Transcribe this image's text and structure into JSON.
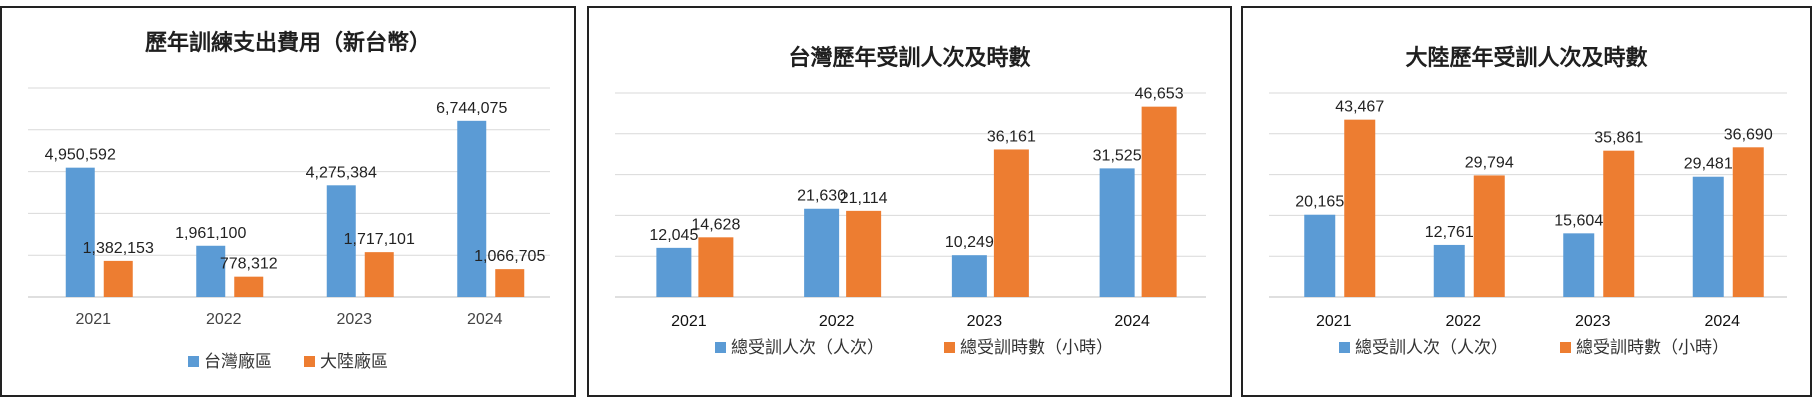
{
  "colors": {
    "series_blue": "#5b9bd5",
    "series_orange": "#ed7d31"
  },
  "chart_data": [
    {
      "type": "bar",
      "title": "歷年訓練支出費用（新台幣）",
      "categories": [
        "2021",
        "2022",
        "2023",
        "2024"
      ],
      "series": [
        {
          "name": "台灣廠區",
          "values": [
            4950592,
            1961100,
            4275384,
            6744075
          ],
          "labels": [
            "4,950,592",
            "1,961,100",
            "4,275,384",
            "6,744,075"
          ]
        },
        {
          "name": "大陸廠區",
          "values": [
            1382153,
            778312,
            1717101,
            1066705
          ],
          "labels": [
            "1,382,153",
            "778,312",
            "1,717,101",
            "1,066,705"
          ]
        }
      ],
      "ylim": [
        0,
        8000000
      ],
      "grid": true,
      "legend": "bottom"
    },
    {
      "type": "bar",
      "title": "台灣歷年受訓人次及時數",
      "categories": [
        "2021",
        "2022",
        "2023",
        "2024"
      ],
      "series": [
        {
          "name": "總受訓人次（人次）",
          "values": [
            12045,
            21630,
            10249,
            31525
          ],
          "labels": [
            "12,045",
            "21,630",
            "10,249",
            "31,525"
          ]
        },
        {
          "name": "總受訓時數（小時）",
          "values": [
            14628,
            21114,
            36161,
            46653
          ],
          "labels": [
            "14,628",
            "21,114",
            "36,161",
            "46,653"
          ]
        }
      ],
      "ylim": [
        0,
        50000
      ],
      "grid": true,
      "legend": "bottom"
    },
    {
      "type": "bar",
      "title": "大陸歷年受訓人次及時數",
      "categories": [
        "2021",
        "2022",
        "2023",
        "2024"
      ],
      "series": [
        {
          "name": "總受訓人次（人次）",
          "values": [
            20165,
            12761,
            15604,
            29481
          ],
          "labels": [
            "20,165",
            "12,761",
            "15,604",
            "29,481"
          ]
        },
        {
          "name": "總受訓時數（小時）",
          "values": [
            43467,
            29794,
            35861,
            36690
          ],
          "labels": [
            "43,467",
            "29,794",
            "35,861",
            "36,690"
          ]
        }
      ],
      "ylim": [
        0,
        50000
      ],
      "grid": true,
      "legend": "bottom"
    }
  ]
}
